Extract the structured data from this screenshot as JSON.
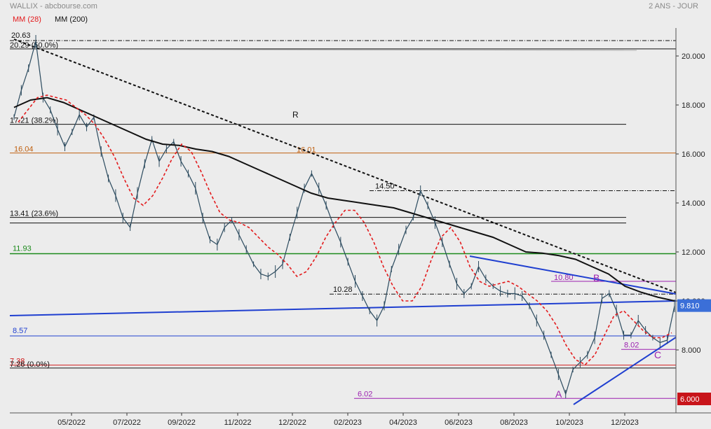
{
  "header": {
    "source": "WALLIX - abcbourse.com",
    "period": "2 ANS - JOUR"
  },
  "legend": [
    {
      "label": "MM (28)",
      "color": "#e31a1c"
    },
    {
      "label": "MM (200)",
      "color": "#111111"
    }
  ],
  "chart_data": {
    "type": "line",
    "title": "WALLIX",
    "x_ticks": [
      "05/2022",
      "07/2022",
      "09/2022",
      "11/2022",
      "12/2022",
      "02/2023",
      "04/2023",
      "06/2023",
      "08/2023",
      "10/2023",
      "12/2023"
    ],
    "y_ticks": [
      "20.000",
      "18.000",
      "16.000",
      "14.000",
      "12.000",
      "10.000",
      "8.000"
    ],
    "ylim": [
      6,
      20.5
    ],
    "y_scale": "linear",
    "grid": false,
    "current_price": "9.810",
    "min_label": "6.000",
    "levels": [
      {
        "label": "20.63",
        "value": 20.63,
        "style": "dash-dot",
        "color": "#111111"
      },
      {
        "label": "20.29 (50.0%)",
        "value": 20.29,
        "style": "solid",
        "color": "#111111"
      },
      {
        "label": "17.21  (38.2%)",
        "value": 17.21,
        "style": "solid",
        "color": "#111111"
      },
      {
        "label": "16.04",
        "value": 16.04,
        "style": "solid",
        "color": "#c06010"
      },
      {
        "label": "16.01",
        "value": 16.01,
        "style": "none",
        "color": "#c06010"
      },
      {
        "label": "14.50",
        "value": 14.5,
        "style": "dash-dot",
        "color": "#111111"
      },
      {
        "label": "13.41  (23.6%)",
        "value": 13.41,
        "style": "solid",
        "color": "#111111"
      },
      {
        "label": "11.93",
        "value": 11.93,
        "style": "solid",
        "color": "#1a8a1a"
      },
      {
        "label": "10.80",
        "value": 10.8,
        "style": "solid",
        "color": "#9b1fb0"
      },
      {
        "label": "10.28",
        "value": 10.28,
        "style": "dash-dot",
        "color": "#111111"
      },
      {
        "label": "8.57",
        "value": 8.57,
        "style": "solid",
        "color": "#1f3fd0"
      },
      {
        "label": "8.02",
        "value": 8.02,
        "style": "solid",
        "color": "#9b1fb0"
      },
      {
        "label": "7.38",
        "value": 7.38,
        "style": "solid",
        "color": "#d01a1a"
      },
      {
        "label": "7.26  (0.0%)",
        "value": 7.26,
        "style": "solid",
        "color": "#111111"
      },
      {
        "label": "6.02",
        "value": 6.02,
        "style": "solid",
        "color": "#9b1fb0"
      }
    ],
    "annotations": [
      {
        "text": "R",
        "color": "#111111"
      },
      {
        "text": "A",
        "color": "#9b1fb0"
      },
      {
        "text": "B",
        "color": "#9b1fb0"
      },
      {
        "text": "C",
        "color": "#9b1fb0"
      }
    ],
    "series": [
      {
        "name": "WALLIX",
        "color": "#2b4a5e",
        "values": [
          17.5,
          18.6,
          19.5,
          20.6,
          18.3,
          17.8,
          17.0,
          16.3,
          16.9,
          17.6,
          17.1,
          17.5,
          16.1,
          15.0,
          14.3,
          13.4,
          13.0,
          14.4,
          15.6,
          16.6,
          15.7,
          16.2,
          16.5,
          15.7,
          15.2,
          14.6,
          13.4,
          12.5,
          12.3,
          13.0,
          13.3,
          12.7,
          12.1,
          11.5,
          11.1,
          11.0,
          11.2,
          11.5,
          12.6,
          13.6,
          14.6,
          15.2,
          14.6,
          13.9,
          13.1,
          12.4,
          11.6,
          10.8,
          10.2,
          9.6,
          9.2,
          9.8,
          11.3,
          12.1,
          12.9,
          13.4,
          14.5,
          13.9,
          13.2,
          12.4,
          11.5,
          10.7,
          10.3,
          10.6,
          11.4,
          10.9,
          10.6,
          10.4,
          10.3,
          10.3,
          10.2,
          9.8,
          9.2,
          8.6,
          7.8,
          7.0,
          6.2,
          7.2,
          7.5,
          7.8,
          8.5,
          10.1,
          10.3,
          9.6,
          8.6,
          8.6,
          9.2,
          8.8,
          8.5,
          8.3,
          8.4,
          9.8
        ]
      },
      {
        "name": "MM (28)",
        "color": "#e31a1c",
        "values": [
          17.3,
          17.8,
          18.3,
          18.4,
          18.3,
          18.2,
          17.9,
          17.6,
          17.2,
          16.6,
          15.9,
          15.0,
          14.2,
          13.9,
          14.3,
          15.0,
          15.8,
          16.4,
          16.1,
          15.3,
          14.4,
          13.6,
          13.3,
          13.2,
          13.0,
          12.6,
          12.2,
          11.9,
          11.5,
          11.0,
          11.2,
          11.8,
          12.6,
          13.2,
          13.7,
          13.7,
          13.2,
          12.4,
          11.4,
          10.6,
          10.0,
          10.0,
          10.6,
          11.7,
          12.6,
          13.0,
          12.4,
          11.4,
          10.8,
          10.6,
          10.7,
          10.8,
          10.6,
          10.3,
          10.0,
          9.6,
          9.0,
          8.2,
          7.6,
          7.4,
          7.8,
          8.6,
          9.4,
          9.6,
          9.2,
          8.8,
          8.5,
          8.5,
          8.7
        ]
      },
      {
        "name": "MM (200)",
        "color": "#111111",
        "values": [
          17.9,
          18.2,
          18.3,
          18.1,
          17.8,
          17.5,
          17.2,
          16.9,
          16.6,
          16.4,
          16.35,
          16.2,
          16.1,
          15.9,
          15.6,
          15.3,
          15.0,
          14.7,
          14.4,
          14.2,
          14.1,
          14.0,
          13.9,
          13.8,
          13.6,
          13.4,
          13.2,
          13.0,
          12.8,
          12.6,
          12.3,
          12.0,
          11.95,
          11.85,
          11.7,
          11.4,
          11.1,
          10.6,
          10.35,
          10.15,
          10.0
        ]
      }
    ]
  }
}
